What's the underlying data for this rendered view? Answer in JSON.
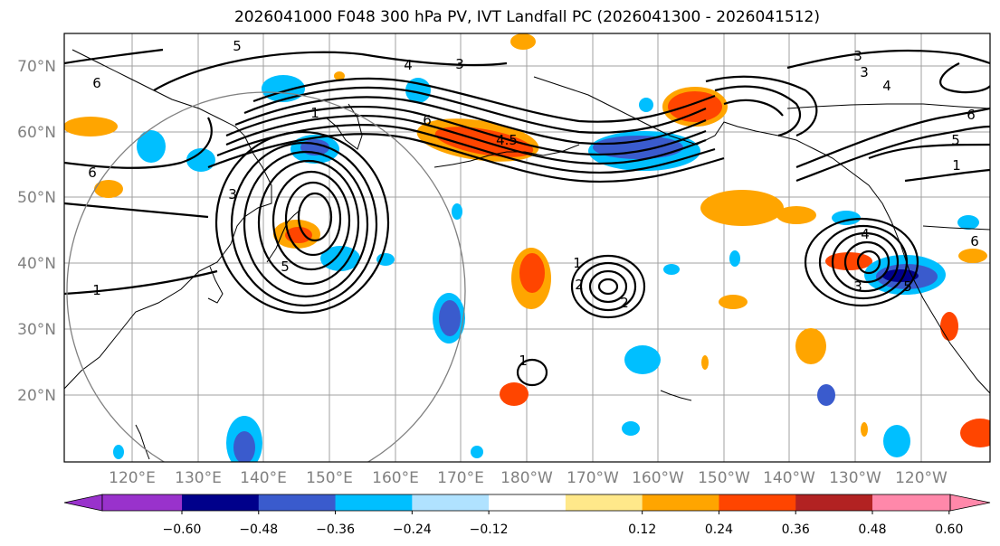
{
  "title": "2026041000 F048 300 hPa PV, IVT Landfall PC (2026041300 - 2026041512)",
  "lat_labels": [
    "70°N",
    "60°N",
    "50°N",
    "40°N",
    "30°N",
    "20°N"
  ],
  "lon_labels": [
    "120°E",
    "130°E",
    "140°E",
    "150°E",
    "160°E",
    "170°E",
    "180°W",
    "170°W",
    "160°W",
    "150°W",
    "140°W",
    "130°W",
    "120°W"
  ],
  "colorbar": {
    "ticks": [
      "−0.60",
      "−0.48",
      "−0.36",
      "−0.24",
      "−0.12",
      "0.12",
      "0.24",
      "0.36",
      "0.48",
      "0.60"
    ],
    "colors": [
      "#9932cc",
      "#00008b",
      "#3a5bcd",
      "#00bfff",
      "#b0e2ff",
      "#ffffff",
      "#ffe88a",
      "#ffa500",
      "#ff4500",
      "#b22222",
      "#ff88aa"
    ]
  },
  "contour_labels": [
    "5",
    "6",
    "4",
    "3",
    "6",
    "1",
    "3",
    "6",
    "4.5",
    "6",
    "3",
    "5",
    "4",
    "1",
    "1",
    "2",
    "1",
    "4",
    "5",
    "3",
    "6",
    "5",
    "1",
    "2",
    "3"
  ]
}
